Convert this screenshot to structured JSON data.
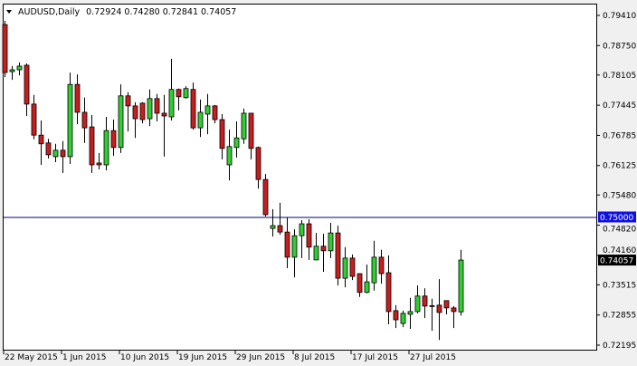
{
  "header": {
    "symbol_timeframe": "AUDUSD,Daily",
    "ohlc_text": "0.72924 0.74280 0.72841 0.74057",
    "menu_icon": "triangle-down-icon"
  },
  "colors": {
    "background": "#ffffff",
    "bull": "#32cd32",
    "bear": "#c81e1e",
    "outline": "#000000",
    "level_line": "#000080",
    "level_label_bg": "#1010e0",
    "price_label_bg": "#000000"
  },
  "chart_data": {
    "type": "candlestick",
    "title": "AUDUSD,Daily",
    "ylim": [
      0.72195,
      0.7941
    ],
    "grid": false,
    "y_ticks": [
      "0.79410",
      "0.78750",
      "0.78105",
      "0.77445",
      "0.76785",
      "0.76125",
      "0.75480",
      "0.74820",
      "0.74160",
      "0.73515",
      "0.72855",
      "0.72195"
    ],
    "x_labels": [
      {
        "text": "22 May 2015",
        "date": "2015-05-22"
      },
      {
        "text": "1 Jun 2015",
        "date": "2015-06-01"
      },
      {
        "text": "10 Jun 2015",
        "date": "2015-06-10"
      },
      {
        "text": "19 Jun 2015",
        "date": "2015-06-19"
      },
      {
        "text": "29 Jun 2015",
        "date": "2015-06-29"
      },
      {
        "text": "8 Jul 2015",
        "date": "2015-07-08"
      },
      {
        "text": "17 Jul 2015",
        "date": "2015-07-17"
      },
      {
        "text": "27 Jul 2015",
        "date": "2015-07-27"
      }
    ],
    "horizontal_line": {
      "value": 0.75,
      "label": "0.75000"
    },
    "current_price": {
      "value": 0.74057,
      "label": "0.74057"
    },
    "dates": [
      "2015-05-22",
      "2015-05-24",
      "2015-05-25",
      "2015-05-26",
      "2015-05-27",
      "2015-05-28",
      "2015-05-29",
      "2015-05-31",
      "2015-06-01",
      "2015-06-02",
      "2015-06-03",
      "2015-06-04",
      "2015-06-05",
      "2015-06-07",
      "2015-06-08",
      "2015-06-09",
      "2015-06-10",
      "2015-06-11",
      "2015-06-12",
      "2015-06-14",
      "2015-06-15",
      "2015-06-16",
      "2015-06-17",
      "2015-06-18",
      "2015-06-19",
      "2015-06-21",
      "2015-06-22",
      "2015-06-23",
      "2015-06-24",
      "2015-06-25",
      "2015-06-26",
      "2015-06-28",
      "2015-06-29",
      "2015-06-30",
      "2015-07-01",
      "2015-07-02",
      "2015-07-03",
      "2015-07-05",
      "2015-07-06",
      "2015-07-07",
      "2015-07-08",
      "2015-07-09",
      "2015-07-10",
      "2015-07-12",
      "2015-07-13",
      "2015-07-14",
      "2015-07-15",
      "2015-07-16",
      "2015-07-17",
      "2015-07-19",
      "2015-07-20",
      "2015-07-21",
      "2015-07-22",
      "2015-07-23",
      "2015-07-24",
      "2015-07-26",
      "2015-07-27",
      "2015-07-28",
      "2015-07-29",
      "2015-07-30",
      "2015-07-31",
      "2015-08-02",
      "2015-08-03",
      "2015-08-04"
    ],
    "ohlc": [
      [
        0.7921,
        0.7929,
        0.7806,
        0.7816
      ],
      [
        0.7818,
        0.783,
        0.78,
        0.7822
      ],
      [
        0.7822,
        0.7838,
        0.781,
        0.783
      ],
      [
        0.7832,
        0.7836,
        0.7721,
        0.7747
      ],
      [
        0.7747,
        0.7767,
        0.767,
        0.7679
      ],
      [
        0.7679,
        0.7711,
        0.7614,
        0.766
      ],
      [
        0.7662,
        0.7671,
        0.7628,
        0.7636
      ],
      [
        0.7632,
        0.766,
        0.762,
        0.7646
      ],
      [
        0.7646,
        0.7666,
        0.7596,
        0.7632
      ],
      [
        0.7632,
        0.7816,
        0.7616,
        0.779
      ],
      [
        0.779,
        0.7812,
        0.7703,
        0.7729
      ],
      [
        0.7729,
        0.7761,
        0.7662,
        0.7695
      ],
      [
        0.7697,
        0.7723,
        0.7596,
        0.7614
      ],
      [
        0.7618,
        0.764,
        0.7604,
        0.7614
      ],
      [
        0.7614,
        0.7719,
        0.7602,
        0.7689
      ],
      [
        0.7689,
        0.7713,
        0.7634,
        0.7652
      ],
      [
        0.7652,
        0.779,
        0.764,
        0.7765
      ],
      [
        0.7765,
        0.7773,
        0.7687,
        0.7743
      ],
      [
        0.7743,
        0.7751,
        0.7673,
        0.7715
      ],
      [
        0.7749,
        0.7751,
        0.7705,
        0.7713
      ],
      [
        0.7715,
        0.7779,
        0.7699,
        0.7759
      ],
      [
        0.7759,
        0.7769,
        0.7709,
        0.7727
      ],
      [
        0.7727,
        0.7767,
        0.7632,
        0.7721
      ],
      [
        0.7719,
        0.7846,
        0.7711,
        0.7779
      ],
      [
        0.7779,
        0.7781,
        0.7733,
        0.7763
      ],
      [
        0.7761,
        0.7786,
        0.7759,
        0.7781
      ],
      [
        0.7779,
        0.7794,
        0.7691,
        0.7695
      ],
      [
        0.7695,
        0.7757,
        0.7675,
        0.7729
      ],
      [
        0.7725,
        0.7769,
        0.7681,
        0.7743
      ],
      [
        0.7743,
        0.7745,
        0.7705,
        0.7713
      ],
      [
        0.7713,
        0.7725,
        0.7626,
        0.765
      ],
      [
        0.7614,
        0.7691,
        0.758,
        0.7654
      ],
      [
        0.7652,
        0.7709,
        0.763,
        0.7673
      ],
      [
        0.7671,
        0.7737,
        0.766,
        0.7727
      ],
      [
        0.7727,
        0.7727,
        0.7626,
        0.765
      ],
      [
        0.7652,
        0.7654,
        0.7562,
        0.7582
      ],
      [
        0.7582,
        0.7594,
        0.7501,
        0.7505
      ],
      [
        0.7475,
        0.7517,
        0.7457,
        0.7481
      ],
      [
        0.7481,
        0.7531,
        0.7461,
        0.7467
      ],
      [
        0.7467,
        0.7499,
        0.7388,
        0.7412
      ],
      [
        0.7412,
        0.7473,
        0.7368,
        0.7459
      ],
      [
        0.7459,
        0.7493,
        0.741,
        0.7485
      ],
      [
        0.7485,
        0.7495,
        0.7406,
        0.7434
      ],
      [
        0.7406,
        0.7465,
        0.7406,
        0.7436
      ],
      [
        0.7436,
        0.7463,
        0.738,
        0.7426
      ],
      [
        0.7426,
        0.7487,
        0.741,
        0.7465
      ],
      [
        0.7465,
        0.7481,
        0.735,
        0.7366
      ],
      [
        0.7366,
        0.7434,
        0.7346,
        0.741
      ],
      [
        0.741,
        0.7418,
        0.7362,
        0.737
      ],
      [
        0.7376,
        0.7376,
        0.7325,
        0.7335
      ],
      [
        0.7335,
        0.7396,
        0.7333,
        0.7358
      ],
      [
        0.7356,
        0.7448,
        0.7339,
        0.7412
      ],
      [
        0.7412,
        0.7428,
        0.7354,
        0.7376
      ],
      [
        0.7378,
        0.7416,
        0.7265,
        0.7293
      ],
      [
        0.7295,
        0.7307,
        0.7257,
        0.7275
      ],
      [
        0.7267,
        0.7295,
        0.7259,
        0.7289
      ],
      [
        0.7287,
        0.7323,
        0.7255,
        0.7293
      ],
      [
        0.7293,
        0.735,
        0.7289,
        0.7327
      ],
      [
        0.7327,
        0.7344,
        0.7279,
        0.7305
      ],
      [
        0.7306,
        0.7321,
        0.7251,
        0.7305
      ],
      [
        0.7307,
        0.7364,
        0.7231,
        0.7291
      ],
      [
        0.7317,
        0.7317,
        0.7287,
        0.7301
      ],
      [
        0.7301,
        0.7305,
        0.7257,
        0.7293
      ],
      [
        0.72924,
        0.7428,
        0.72841,
        0.74057
      ]
    ]
  }
}
